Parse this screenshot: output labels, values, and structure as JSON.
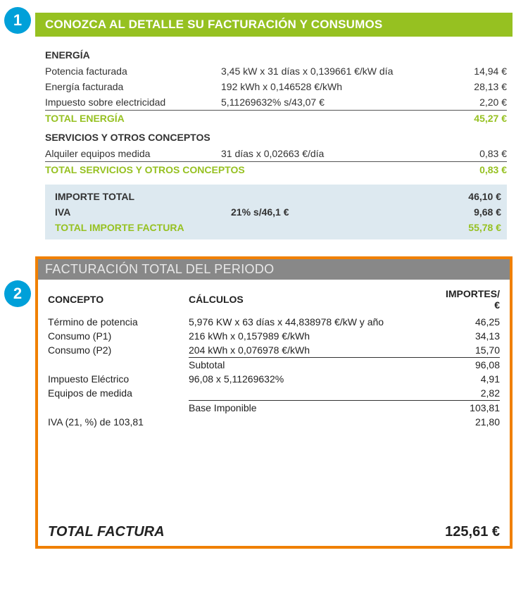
{
  "colors": {
    "badge_bg": "#00a0d9",
    "sec1_header_bg": "#96c121",
    "sec1_accent": "#96c121",
    "totbox_bg": "#dde9f0",
    "sec2_border": "#f08000",
    "sec2_header_bg": "#888888",
    "text": "#222222",
    "rule": "#555555"
  },
  "badge1": "1",
  "badge2": "2",
  "sec1": {
    "title": "CONOZCA AL DETALLE SU FACTURACIÓN Y CONSUMOS",
    "energia": {
      "heading": "ENERGÍA",
      "rows": [
        {
          "label": "Potencia facturada",
          "calc": "3,45 kW  x  31 días  x  0,139661 €/kW día",
          "amount": "14,94 €"
        },
        {
          "label": "Energía facturada",
          "calc": "192 kWh  x  0,146528 €/kWh",
          "amount": "28,13 €"
        },
        {
          "label": "Impuesto sobre electricidad",
          "calc": "5,11269632% s/43,07 €",
          "amount": "2,20 €"
        }
      ],
      "total_label": "TOTAL ENERGÍA",
      "total_amount": "45,27 €"
    },
    "servicios": {
      "heading": "SERVICIOS Y OTROS CONCEPTOS",
      "rows": [
        {
          "label": "Alquiler equipos medida",
          "calc": "31 días  x  0,02663 €/día",
          "amount": "0,83 €"
        }
      ],
      "total_label": "TOTAL SERVICIOS Y OTROS CONCEPTOS",
      "total_amount": "0,83 €"
    },
    "totals": {
      "importe_label": "IMPORTE TOTAL",
      "importe_amount": "46,10 €",
      "iva_label": "IVA",
      "iva_calc": "21% s/46,1 €",
      "iva_amount": "9,68 €",
      "final_label": "TOTAL IMPORTE FACTURA",
      "final_amount": "55,78 €"
    }
  },
  "sec2": {
    "title": "FACTURACIÓN TOTAL DEL PERIODO",
    "head_concepto": "CONCEPTO",
    "head_calculos": "CÁLCULOS",
    "head_importes": "IMPORTES/€",
    "rows": {
      "r1": {
        "label": "Término de potencia",
        "calc": "5,976 KW x 63 días x 44,838978 €/kW y año",
        "amount": "46,25"
      },
      "r2": {
        "label": "Consumo (P1)",
        "calc": "216 kWh x 0,157989 €/kWh",
        "amount": "34,13"
      },
      "r3": {
        "label": "Consumo (P2)",
        "calc": "204 kWh x 0,076978 €/kWh",
        "amount": "15,70"
      },
      "subtotal_label": "Subtotal",
      "subtotal_amount": "96,08",
      "r4": {
        "label": "Impuesto Eléctrico",
        "calc": "96,08 x 5,11269632%",
        "amount": "4,91"
      },
      "r5": {
        "label": "Equipos de medida",
        "calc": "",
        "amount": "2,82"
      },
      "base_label": "Base Imponible",
      "base_amount": "103,81",
      "r6": {
        "label": "IVA (21, %) de 103,81",
        "calc": "",
        "amount": "21,80"
      }
    },
    "footer_label": "TOTAL FACTURA",
    "footer_amount": "125,61  €"
  }
}
